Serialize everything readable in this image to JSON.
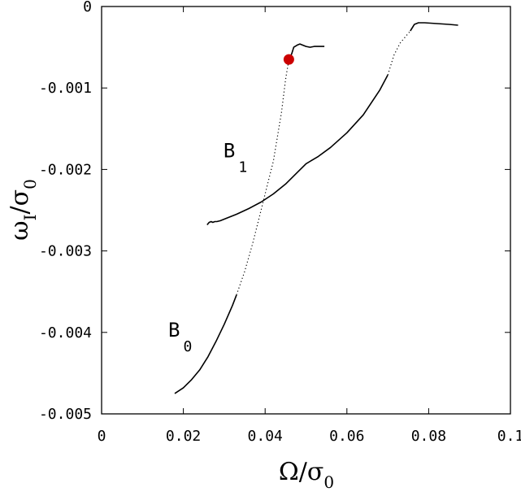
{
  "chart_data": {
    "type": "line",
    "title": "",
    "xlabel": {
      "main": "Ω/σ",
      "sub": "0"
    },
    "ylabel": {
      "main": "ω",
      "sub1": "I",
      "sep": "/σ",
      "sub2": "0"
    },
    "xlim": [
      0,
      0.1
    ],
    "ylim": [
      -0.005,
      0
    ],
    "xticks": [
      0,
      0.02,
      0.04,
      0.06,
      0.08,
      0.1
    ],
    "xtick_labels": [
      "0",
      "0.02",
      "0.04",
      "0.06",
      "0.08",
      "0.1"
    ],
    "yticks": [
      0,
      -0.001,
      -0.002,
      -0.003,
      -0.004,
      -0.005
    ],
    "ytick_labels": [
      "0",
      "-0.001",
      "-0.002",
      "-0.003",
      "-0.004",
      "-0.005"
    ],
    "grid": false,
    "series": [
      {
        "name": "B_0",
        "color": "#000000",
        "solid_segments": [
          [
            [
              0.0179,
              -0.00475
            ],
            [
              0.02,
              -0.00468
            ],
            [
              0.022,
              -0.00458
            ],
            [
              0.024,
              -0.00446
            ],
            [
              0.026,
              -0.0043
            ],
            [
              0.028,
              -0.00411
            ],
            [
              0.03,
              -0.0039
            ],
            [
              0.032,
              -0.00367
            ],
            [
              0.033,
              -0.00354
            ]
          ],
          [
            [
              0.0458,
              -0.00065
            ],
            [
              0.0465,
              -0.00058
            ],
            [
              0.047,
              -0.0005
            ],
            [
              0.048,
              -0.00047
            ],
            [
              0.0485,
              -0.00046
            ],
            [
              0.049,
              -0.00047
            ],
            [
              0.05,
              -0.00049
            ],
            [
              0.051,
              -0.0005
            ],
            [
              0.052,
              -0.00049
            ],
            [
              0.053,
              -0.00049
            ],
            [
              0.0545,
              -0.00049
            ]
          ]
        ],
        "dotted_segment": [
          [
            0.033,
            -0.00354
          ],
          [
            0.035,
            -0.00325
          ],
          [
            0.037,
            -0.0029
          ],
          [
            0.039,
            -0.0025
          ],
          [
            0.041,
            -0.0021
          ],
          [
            0.042,
            -0.0019
          ],
          [
            0.043,
            -0.0016
          ],
          [
            0.044,
            -0.0013
          ],
          [
            0.045,
            -0.0009
          ],
          [
            0.0458,
            -0.00065
          ]
        ]
      },
      {
        "name": "B_1",
        "color": "#000000",
        "solid_segments": [
          [
            [
              0.0258,
              -0.00268
            ],
            [
              0.0263,
              -0.00265
            ],
            [
              0.0268,
              -0.00264
            ],
            [
              0.0272,
              -0.00265
            ],
            [
              0.0277,
              -0.00264
            ],
            [
              0.0282,
              -0.00264
            ],
            [
              0.029,
              -0.00263
            ],
            [
              0.031,
              -0.00259
            ],
            [
              0.033,
              -0.00255
            ],
            [
              0.036,
              -0.00248
            ],
            [
              0.039,
              -0.0024
            ],
            [
              0.042,
              -0.0023
            ],
            [
              0.045,
              -0.00218
            ],
            [
              0.048,
              -0.00203
            ],
            [
              0.05,
              -0.00193
            ],
            [
              0.053,
              -0.00184
            ],
            [
              0.056,
              -0.00173
            ],
            [
              0.06,
              -0.00155
            ],
            [
              0.064,
              -0.00133
            ],
            [
              0.068,
              -0.00103
            ],
            [
              0.07,
              -0.00084
            ]
          ],
          [
            [
              0.0755,
              -0.0003
            ],
            [
              0.0765,
              -0.00022
            ],
            [
              0.0775,
              -0.0002
            ],
            [
              0.079,
              -0.0002
            ],
            [
              0.082,
              -0.00021
            ],
            [
              0.085,
              -0.00022
            ],
            [
              0.0872,
              -0.00023
            ]
          ]
        ],
        "dotted_segment": [
          [
            0.07,
            -0.00084
          ],
          [
            0.0715,
            -0.0006
          ],
          [
            0.073,
            -0.00045
          ],
          [
            0.0745,
            -0.00036
          ],
          [
            0.0755,
            -0.0003
          ]
        ]
      }
    ],
    "marker": {
      "x": 0.0458,
      "y": -0.00065,
      "color": "#cc0000"
    },
    "annotations": [
      {
        "label": "B",
        "sub": "0",
        "x": 0.0163,
        "y": -0.00405
      },
      {
        "label": "B",
        "sub": "1",
        "x": 0.0298,
        "y": -0.00185
      }
    ]
  }
}
